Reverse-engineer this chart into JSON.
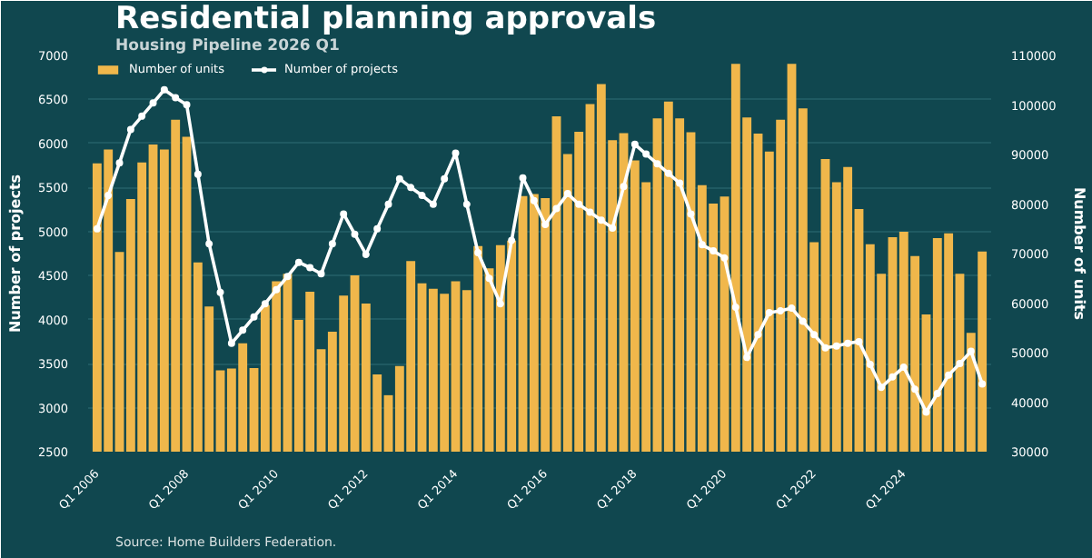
{
  "chart_data": {
    "type": "bar",
    "title": "Residential planning approvals",
    "subtitle": "Housing Pipeline 2026 Q1",
    "ylabel": "Number of projects",
    "y2label": "Number of units",
    "categories": [
      "Q1 2006",
      null,
      null,
      null,
      null,
      null,
      null,
      null,
      "Q1 2008",
      null,
      null,
      null,
      null,
      null,
      null,
      null,
      "Q1 2010",
      null,
      null,
      null,
      null,
      null,
      null,
      null,
      "Q1 2012",
      null,
      null,
      null,
      null,
      null,
      null,
      null,
      "Q1 2014",
      null,
      null,
      null,
      null,
      null,
      null,
      null,
      "Q1 2016",
      null,
      null,
      null,
      null,
      null,
      null,
      null,
      "Q1 2018",
      null,
      null,
      null,
      null,
      null,
      null,
      null,
      "Q1 2020",
      null,
      null,
      null,
      null,
      null,
      null,
      null,
      "Q1 2022",
      null,
      null,
      null,
      null,
      null,
      null,
      null,
      "Q1 2024",
      null,
      null,
      null,
      null,
      null,
      null,
      null
    ],
    "series": [
      {
        "name": "Number of units",
        "axis": "y2",
        "color": "#f0b74b",
        "values": [
          88200,
          91000,
          70300,
          81000,
          88400,
          92000,
          91000,
          97000,
          93600,
          68200,
          59300,
          46400,
          46800,
          51900,
          46900,
          59600,
          64400,
          65900,
          56600,
          62300,
          50700,
          54200,
          61500,
          65600,
          59900,
          45600,
          41400,
          47300,
          68500,
          64000,
          62900,
          61900,
          64400,
          62600,
          71500,
          67000,
          71700,
          72600,
          81600,
          82000,
          81200,
          97700,
          90100,
          94600,
          100200,
          104200,
          92900,
          94300,
          88800,
          84400,
          97300,
          100700,
          97300,
          94500,
          83800,
          80100,
          81500,
          108300,
          97500,
          94200,
          90600,
          97000,
          108300,
          99300,
          72300,
          89100,
          84400,
          87500,
          79000,
          71900,
          65900,
          73300,
          74400,
          69500,
          57700,
          73100,
          74100,
          65900,
          54000,
          70400
        ]
      },
      {
        "name": "Number of projects",
        "type": "line",
        "axis": "y",
        "color": "#ffffff",
        "marker": "circle",
        "line_style": "solid",
        "values": [
          5030,
          5410,
          5780,
          6160,
          6310,
          6460,
          6610,
          6520,
          6440,
          5650,
          4860,
          4310,
          3730,
          3880,
          4030,
          4180,
          4340,
          4490,
          4650,
          4590,
          4520,
          4860,
          5200,
          4970,
          4740,
          5030,
          5310,
          5600,
          5500,
          5410,
          5310,
          5600,
          5890,
          5310,
          4760,
          4470,
          4180,
          4900,
          5610,
          5350,
          5080,
          5260,
          5430,
          5310,
          5220,
          5130,
          5040,
          5510,
          5990,
          5880,
          5770,
          5660,
          5550,
          5200,
          4850,
          4780,
          4700,
          4140,
          3570,
          3830,
          4080,
          4100,
          4130,
          3980,
          3830,
          3680,
          3700,
          3730,
          3750,
          3490,
          3230,
          3350,
          3460,
          3210,
          2950,
          3160,
          3370,
          3500,
          3640,
          3270
        ]
      }
    ],
    "ylim": [
      2500,
      7000
    ],
    "yticks": [
      2500,
      3000,
      3500,
      4000,
      4500,
      5000,
      5500,
      6000,
      6500,
      7000
    ],
    "y2lim": [
      30000,
      110000
    ],
    "y2ticks": [
      30000,
      40000,
      50000,
      60000,
      70000,
      80000,
      90000,
      100000,
      110000
    ],
    "grid": "y",
    "legend": "top left",
    "annotations": [
      "Source: Home Builders Federation."
    ]
  }
}
